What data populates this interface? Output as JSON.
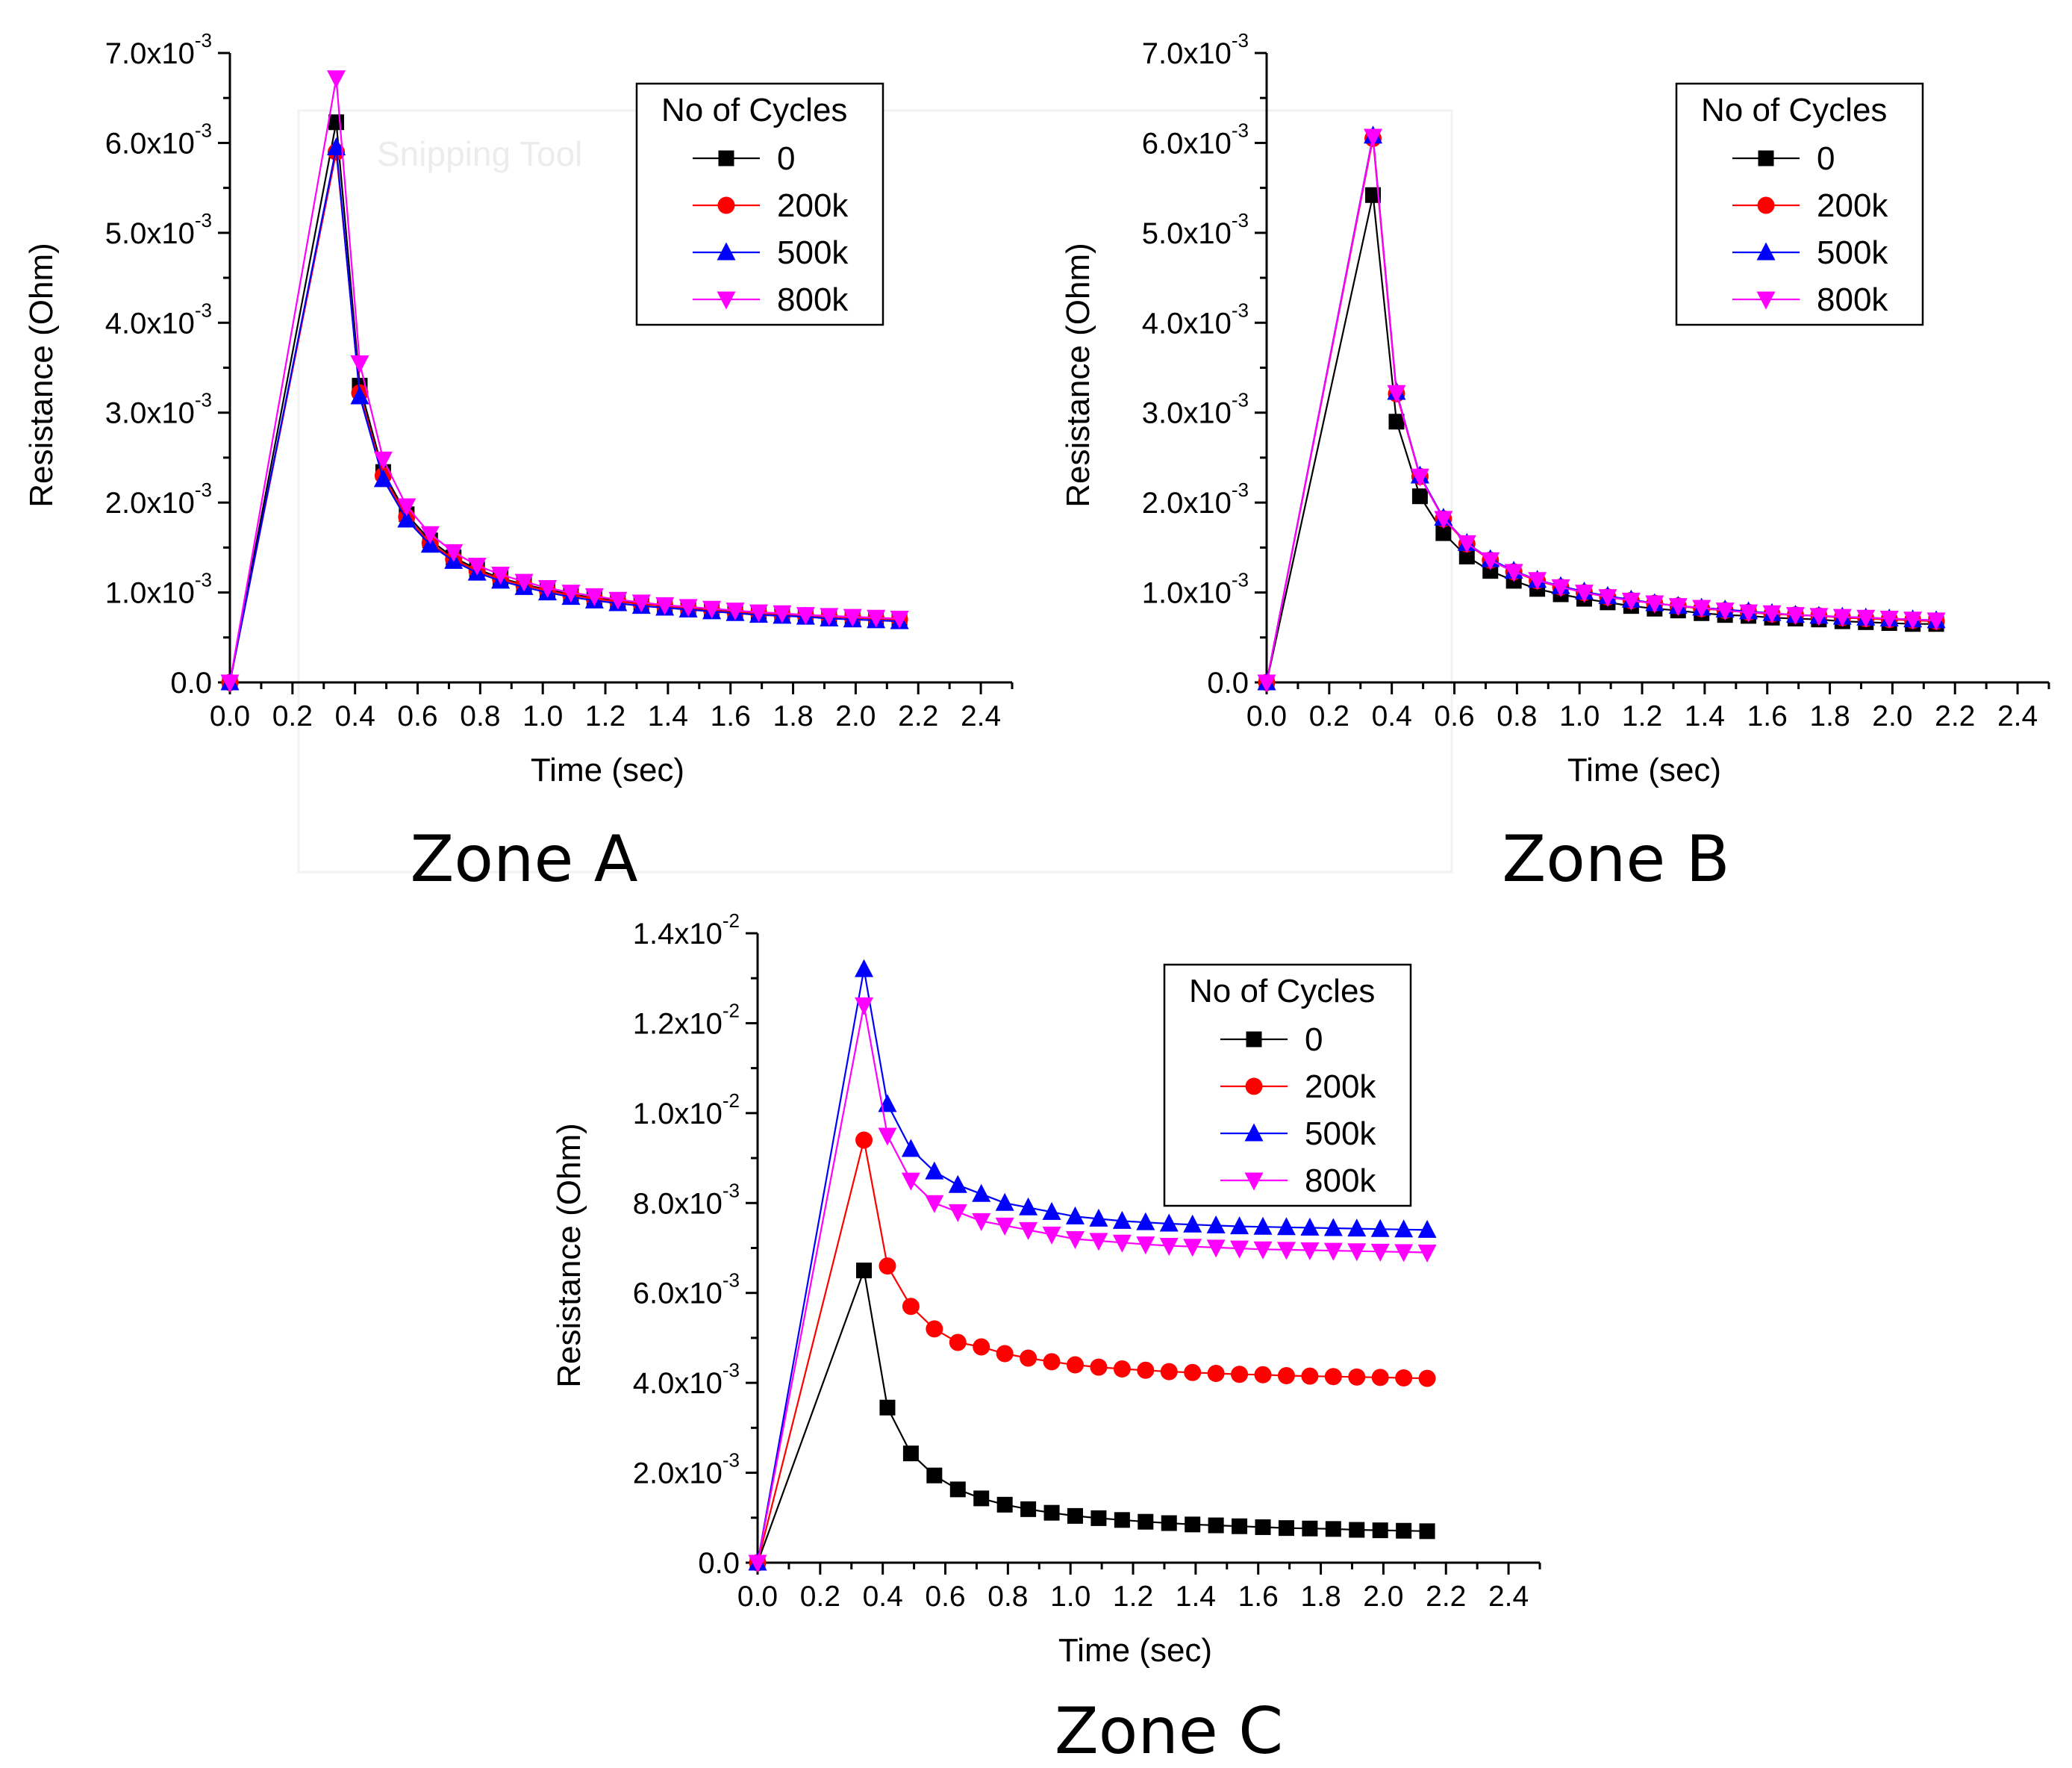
{
  "watermark": "Snipping Tool",
  "chart_data": [
    {
      "type": "line",
      "caption": "Zone A",
      "xlabel": "Time (sec)",
      "ylabel": "Resistance (Ohm)",
      "xlim": [
        0,
        2.5
      ],
      "ylim": [
        0,
        0.007
      ],
      "xticks": [
        "0.0",
        "0.2",
        "0.4",
        "0.6",
        "0.8",
        "1.0",
        "1.2",
        "1.4",
        "1.6",
        "1.8",
        "2.0",
        "2.2",
        "2.4"
      ],
      "yticks": [
        {
          "mantissa": "0.0",
          "exp": ""
        },
        {
          "mantissa": "1.0x10",
          "exp": "-3"
        },
        {
          "mantissa": "2.0x10",
          "exp": "-3"
        },
        {
          "mantissa": "3.0x10",
          "exp": "-3"
        },
        {
          "mantissa": "4.0x10",
          "exp": "-3"
        },
        {
          "mantissa": "5.0x10",
          "exp": "-3"
        },
        {
          "mantissa": "6.0x10",
          "exp": "-3"
        },
        {
          "mantissa": "7.0x10",
          "exp": "-3"
        }
      ],
      "grid": false,
      "legend_title": "No of Cycles",
      "legend_position": "top-right",
      "x": [
        0,
        0.34,
        0.415,
        0.49,
        0.565,
        0.64,
        0.715,
        0.79,
        0.865,
        0.94,
        1.015,
        1.09,
        1.165,
        1.24,
        1.315,
        1.39,
        1.465,
        1.54,
        1.615,
        1.69,
        1.765,
        1.84,
        1.915,
        1.99,
        2.065,
        2.14
      ],
      "series": [
        {
          "name": "0",
          "color": "#000000",
          "marker": "square",
          "values": [
            0,
            0.00623,
            0.0033,
            0.00234,
            0.00187,
            0.00158,
            0.00139,
            0.00126,
            0.00116,
            0.00109,
            0.00103,
            0.00098,
            0.00094,
            0.00091,
            0.00088,
            0.00085,
            0.00083,
            0.00081,
            0.00079,
            0.00077,
            0.00076,
            0.00074,
            0.00073,
            0.00072,
            0.00071,
            0.0007
          ]
        },
        {
          "name": "200k",
          "color": "#ff0000",
          "marker": "circle",
          "values": [
            0,
            0.0059,
            0.00322,
            0.0023,
            0.00184,
            0.00155,
            0.00137,
            0.00124,
            0.00115,
            0.00108,
            0.00102,
            0.00097,
            0.00093,
            0.0009,
            0.00087,
            0.00085,
            0.00082,
            0.0008,
            0.00078,
            0.00077,
            0.00075,
            0.00074,
            0.00073,
            0.00072,
            0.00071,
            0.0007
          ]
        },
        {
          "name": "500k",
          "color": "#0000ff",
          "marker": "triangle-up",
          "values": [
            0,
            0.00595,
            0.00318,
            0.00226,
            0.00181,
            0.00153,
            0.00135,
            0.00122,
            0.00113,
            0.00106,
            0.001,
            0.00095,
            0.00091,
            0.00088,
            0.00085,
            0.00083,
            0.00081,
            0.00079,
            0.00077,
            0.00075,
            0.00074,
            0.00073,
            0.00071,
            0.0007,
            0.00069,
            0.00068
          ]
        },
        {
          "name": "800k",
          "color": "#ff00ff",
          "marker": "triangle-down",
          "values": [
            0,
            0.00672,
            0.00355,
            0.00248,
            0.00196,
            0.00165,
            0.00145,
            0.0013,
            0.0012,
            0.00112,
            0.00105,
            0.001,
            0.00096,
            0.00092,
            0.00089,
            0.00086,
            0.00084,
            0.00082,
            0.0008,
            0.00078,
            0.00077,
            0.00075,
            0.00074,
            0.00073,
            0.00072,
            0.00071
          ]
        }
      ]
    },
    {
      "type": "line",
      "caption": "Zone B",
      "xlabel": "Time (sec)",
      "ylabel": "Resistance (Ohm)",
      "xlim": [
        0,
        2.5
      ],
      "ylim": [
        0,
        0.007
      ],
      "xticks": [
        "0.0",
        "0.2",
        "0.4",
        "0.6",
        "0.8",
        "1.0",
        "1.2",
        "1.4",
        "1.6",
        "1.8",
        "2.0",
        "2.2",
        "2.4"
      ],
      "yticks": [
        {
          "mantissa": "0.0",
          "exp": ""
        },
        {
          "mantissa": "1.0x10",
          "exp": "-3"
        },
        {
          "mantissa": "2.0x10",
          "exp": "-3"
        },
        {
          "mantissa": "3.0x10",
          "exp": "-3"
        },
        {
          "mantissa": "4.0x10",
          "exp": "-3"
        },
        {
          "mantissa": "5.0x10",
          "exp": "-3"
        },
        {
          "mantissa": "6.0x10",
          "exp": "-3"
        },
        {
          "mantissa": "7.0x10",
          "exp": "-3"
        }
      ],
      "grid": false,
      "legend_title": "No of Cycles",
      "legend_position": "top-right",
      "x": [
        0,
        0.34,
        0.415,
        0.49,
        0.565,
        0.64,
        0.715,
        0.79,
        0.865,
        0.94,
        1.015,
        1.09,
        1.165,
        1.24,
        1.315,
        1.39,
        1.465,
        1.54,
        1.615,
        1.69,
        1.765,
        1.84,
        1.915,
        1.99,
        2.065,
        2.14
      ],
      "series": [
        {
          "name": "0",
          "color": "#000000",
          "marker": "square",
          "values": [
            0,
            0.00542,
            0.0029,
            0.00207,
            0.00166,
            0.0014,
            0.00124,
            0.00113,
            0.00104,
            0.00098,
            0.00093,
            0.00089,
            0.00085,
            0.00082,
            0.0008,
            0.00077,
            0.00075,
            0.00074,
            0.00072,
            0.00071,
            0.0007,
            0.00068,
            0.00067,
            0.00066,
            0.00065,
            0.00065
          ]
        },
        {
          "name": "200k",
          "color": "#ff0000",
          "marker": "circle",
          "values": [
            0,
            0.00605,
            0.00321,
            0.00229,
            0.00182,
            0.00154,
            0.00136,
            0.00123,
            0.00113,
            0.00106,
            0.001,
            0.00095,
            0.00091,
            0.00088,
            0.00085,
            0.00082,
            0.0008,
            0.00078,
            0.00076,
            0.00075,
            0.00074,
            0.00072,
            0.00071,
            0.0007,
            0.00069,
            0.00068
          ]
        },
        {
          "name": "500k",
          "color": "#0000ff",
          "marker": "triangle-up",
          "values": [
            0,
            0.00608,
            0.00323,
            0.0023,
            0.00183,
            0.00155,
            0.00137,
            0.00124,
            0.00114,
            0.00107,
            0.00101,
            0.00096,
            0.00092,
            0.00088,
            0.00085,
            0.00083,
            0.00081,
            0.00079,
            0.00077,
            0.00075,
            0.00074,
            0.00073,
            0.00072,
            0.00071,
            0.0007,
            0.00069
          ]
        },
        {
          "name": "800k",
          "color": "#ff00ff",
          "marker": "triangle-down",
          "values": [
            0,
            0.00607,
            0.00322,
            0.00229,
            0.00182,
            0.00155,
            0.00136,
            0.00123,
            0.00114,
            0.00106,
            0.001,
            0.00095,
            0.00091,
            0.00088,
            0.00085,
            0.00083,
            0.0008,
            0.00078,
            0.00077,
            0.00075,
            0.00074,
            0.00073,
            0.00072,
            0.00071,
            0.0007,
            0.00069
          ]
        }
      ]
    },
    {
      "type": "line",
      "caption": "Zone C",
      "xlabel": "Time (sec)",
      "ylabel": "Resistance (Ohm)",
      "xlim": [
        0,
        2.5
      ],
      "ylim": [
        0,
        0.014
      ],
      "xticks": [
        "0.0",
        "0.2",
        "0.4",
        "0.6",
        "0.8",
        "1.0",
        "1.2",
        "1.4",
        "1.6",
        "1.8",
        "2.0",
        "2.2",
        "2.4"
      ],
      "yticks": [
        {
          "mantissa": "0.0",
          "exp": ""
        },
        {
          "mantissa": "2.0x10",
          "exp": "-3"
        },
        {
          "mantissa": "4.0x10",
          "exp": "-3"
        },
        {
          "mantissa": "6.0x10",
          "exp": "-3"
        },
        {
          "mantissa": "8.0x10",
          "exp": "-3"
        },
        {
          "mantissa": "1.0x10",
          "exp": "-2"
        },
        {
          "mantissa": "1.2x10",
          "exp": "-2"
        },
        {
          "mantissa": "1.4x10",
          "exp": "-2"
        }
      ],
      "grid": false,
      "legend_title": "No of Cycles",
      "legend_position": "top-right",
      "x": [
        0,
        0.34,
        0.415,
        0.49,
        0.565,
        0.64,
        0.715,
        0.79,
        0.865,
        0.94,
        1.015,
        1.09,
        1.165,
        1.24,
        1.315,
        1.39,
        1.465,
        1.54,
        1.615,
        1.69,
        1.765,
        1.84,
        1.915,
        1.99,
        2.065,
        2.14
      ],
      "series": [
        {
          "name": "0",
          "color": "#000000",
          "marker": "square",
          "values": [
            0,
            0.0065,
            0.00345,
            0.00243,
            0.00194,
            0.00163,
            0.00143,
            0.00129,
            0.00119,
            0.00111,
            0.00104,
            0.00099,
            0.00095,
            0.00091,
            0.00088,
            0.00085,
            0.00083,
            0.00081,
            0.00079,
            0.00077,
            0.00076,
            0.00075,
            0.00073,
            0.00072,
            0.00071,
            0.0007
          ]
        },
        {
          "name": "200k",
          "color": "#ff0000",
          "marker": "circle",
          "values": [
            0,
            0.0094,
            0.0066,
            0.0057,
            0.0052,
            0.0049,
            0.0048,
            0.00465,
            0.00455,
            0.00447,
            0.0044,
            0.00435,
            0.00431,
            0.00428,
            0.00425,
            0.00423,
            0.00421,
            0.00419,
            0.00418,
            0.00416,
            0.00415,
            0.00414,
            0.00413,
            0.00412,
            0.00411,
            0.0041
          ]
        },
        {
          "name": "500k",
          "color": "#0000ff",
          "marker": "triangle-up",
          "values": [
            0,
            0.0132,
            0.0102,
            0.0092,
            0.0087,
            0.0084,
            0.0082,
            0.008,
            0.0079,
            0.0078,
            0.0077,
            0.00765,
            0.0076,
            0.00757,
            0.00754,
            0.00752,
            0.0075,
            0.00748,
            0.00747,
            0.00746,
            0.00745,
            0.00744,
            0.00743,
            0.00742,
            0.00741,
            0.0074
          ]
        },
        {
          "name": "800k",
          "color": "#ff00ff",
          "marker": "triangle-down",
          "values": [
            0,
            0.0124,
            0.0095,
            0.0085,
            0.008,
            0.0078,
            0.0076,
            0.0075,
            0.0074,
            0.0073,
            0.0072,
            0.00716,
            0.00712,
            0.00708,
            0.00705,
            0.00703,
            0.00701,
            0.00699,
            0.00697,
            0.00696,
            0.00695,
            0.00694,
            0.00693,
            0.00692,
            0.00691,
            0.0069
          ]
        }
      ]
    }
  ]
}
